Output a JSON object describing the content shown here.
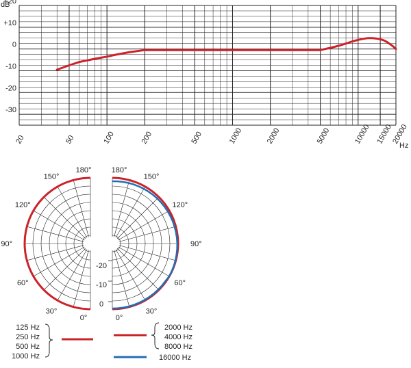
{
  "chart_data": [
    {
      "type": "line",
      "title": "",
      "xlabel": "Hz",
      "ylabel": "dB",
      "x_scale": "log",
      "xlim": [
        20,
        20000
      ],
      "ylim": [
        -35,
        20
      ],
      "y_ticks": [
        "+20",
        "+10",
        "0",
        "-10",
        "-20",
        "-30"
      ],
      "x_ticks": [
        "20",
        "50",
        "100",
        "200",
        "500",
        "1000",
        "2000",
        "5000",
        "10000",
        "15000",
        "20000"
      ],
      "grid": true,
      "color": "#cc2229",
      "series": [
        {
          "x": [
            40,
            50,
            60,
            80,
            100,
            120,
            150,
            200,
            300,
            500,
            1000,
            2000,
            3000,
            5000,
            6000,
            7000,
            8000,
            9000,
            10000,
            11000,
            12000,
            13000,
            14000,
            15000,
            16000,
            17000,
            18000,
            19000,
            20000
          ],
          "y": [
            -9.5,
            -7.5,
            -6,
            -4.5,
            -3.5,
            -2.5,
            -1.5,
            -0.5,
            -0.5,
            -0.5,
            -0.5,
            -0.5,
            -0.5,
            -0.5,
            0.5,
            1.5,
            2.5,
            3.5,
            4.2,
            4.7,
            5,
            5,
            4.8,
            4.5,
            4,
            3.2,
            2.2,
            1.2,
            0
          ]
        }
      ]
    },
    {
      "type": "polar",
      "angle_labels_left": [
        "180°",
        "150°",
        "120°",
        "90°",
        "60°",
        "30°",
        "0°"
      ],
      "angle_labels_right": [
        "180°",
        "150°",
        "120°",
        "90°",
        "60°",
        "30°",
        "0°"
      ],
      "radial_labels": [
        "-20",
        "-10",
        "0"
      ],
      "series": [
        {
          "name": "125 Hz 250 Hz 500 Hz 1000 Hz",
          "side": "left",
          "color": "#cc2229"
        },
        {
          "name": "2000 Hz 4000 Hz 8000 Hz",
          "side": "right",
          "color": "#cc2229"
        },
        {
          "name": "16000 Hz",
          "side": "right",
          "color": "#1f6fb5"
        }
      ]
    }
  ],
  "legend": {
    "left": [
      "125 Hz",
      "250 Hz",
      "500 Hz",
      "1000 Hz"
    ],
    "right_red": [
      "2000 Hz",
      "4000 Hz",
      "8000 Hz"
    ],
    "right_blue": "16000 Hz"
  }
}
